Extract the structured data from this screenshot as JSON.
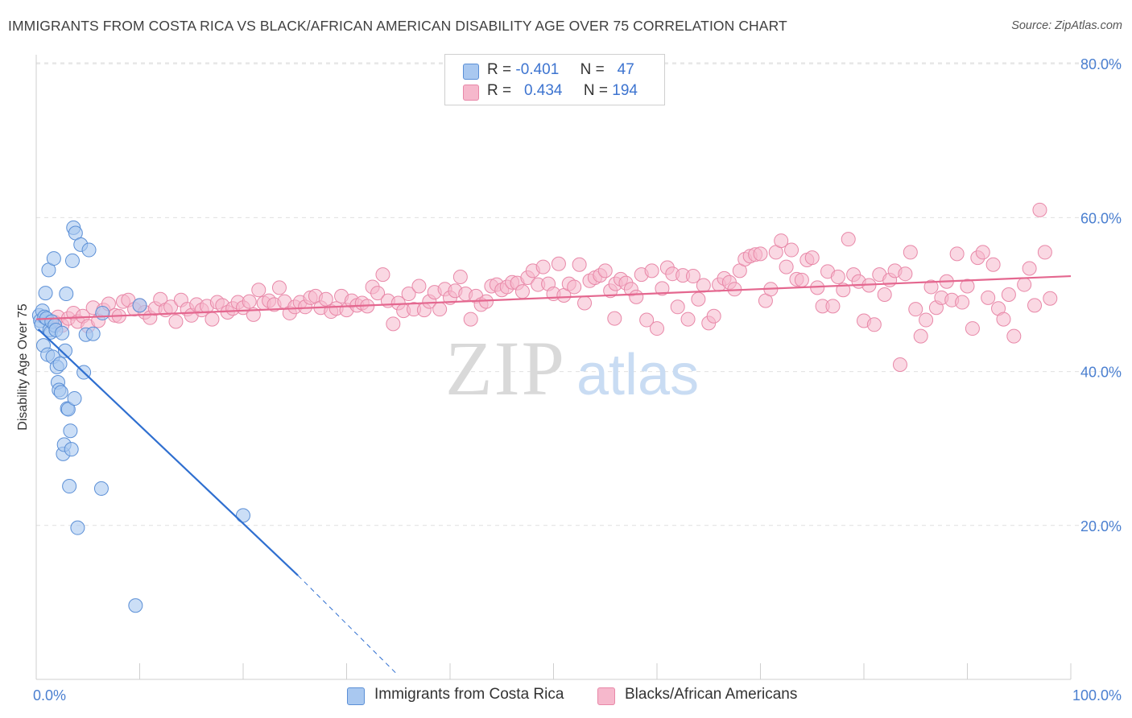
{
  "title": "IMMIGRANTS FROM COSTA RICA VS BLACK/AFRICAN AMERICAN DISABILITY AGE OVER 75 CORRELATION CHART",
  "source": "Source: ZipAtlas.com",
  "watermark": {
    "zip": "ZIP",
    "atlas": "atlas"
  },
  "colors": {
    "blue_fill": "#a9c8f0",
    "blue_stroke": "#5b8fd6",
    "blue_line": "#2f6fd0",
    "pink_fill": "#f6b8cc",
    "pink_stroke": "#e888a8",
    "pink_line": "#e4678f",
    "grid": "#e0e0e0",
    "tick_text": "#4a7fd0"
  },
  "legend_top": {
    "rows": [
      {
        "r_label": "R =",
        "r_value": "-0.401",
        "n_label": "N =",
        "n_value": "47"
      },
      {
        "r_label": "R =",
        "r_value": "0.434",
        "n_label": "N =",
        "n_value": "194"
      }
    ]
  },
  "legend_bottom": [
    {
      "name": "Immigrants from Costa Rica"
    },
    {
      "name": "Blacks/African Americans"
    }
  ],
  "chart_data": {
    "type": "scatter",
    "title": "IMMIGRANTS FROM COSTA RICA VS BLACK/AFRICAN AMERICAN DISABILITY AGE OVER 75 CORRELATION CHART",
    "xlabel": "",
    "ylabel": "Disability Age Over 75",
    "xlim": [
      0,
      100
    ],
    "ylim": [
      0,
      85
    ],
    "x_ticks": [
      0,
      100
    ],
    "x_tick_labels": [
      "0.0%",
      "100.0%"
    ],
    "y_ticks": [
      20,
      40,
      60,
      80
    ],
    "y_tick_labels": [
      "20.0%",
      "40.0%",
      "60.0%",
      "80.0%"
    ],
    "grid": true,
    "legend_placement": "bottom",
    "series": [
      {
        "name": "Immigrants from Costa Rica",
        "color": "#a9c8f0",
        "r": -0.401,
        "n": 47,
        "trend": {
          "x": [
            0.2,
            25.3
          ],
          "y": [
            45.5,
            13.5
          ],
          "dashed_to": [
            35.0,
            0.5
          ]
        },
        "points": [
          [
            0.3,
            47.3
          ],
          [
            0.4,
            46.6
          ],
          [
            0.5,
            46.1
          ],
          [
            0.6,
            47.9
          ],
          [
            0.7,
            43.4
          ],
          [
            0.8,
            47.1
          ],
          [
            0.9,
            50.2
          ],
          [
            1.0,
            46.9
          ],
          [
            1.1,
            42.2
          ],
          [
            1.2,
            53.2
          ],
          [
            1.3,
            45.4
          ],
          [
            1.4,
            45.1
          ],
          [
            1.5,
            46.5
          ],
          [
            1.6,
            41.9
          ],
          [
            1.7,
            54.7
          ],
          [
            1.8,
            46.0
          ],
          [
            1.9,
            45.4
          ],
          [
            2.0,
            40.6
          ],
          [
            2.1,
            38.6
          ],
          [
            2.2,
            37.6
          ],
          [
            2.3,
            41.0
          ],
          [
            2.4,
            37.3
          ],
          [
            2.5,
            45.0
          ],
          [
            2.6,
            29.3
          ],
          [
            2.7,
            30.5
          ],
          [
            2.8,
            42.7
          ],
          [
            2.9,
            50.1
          ],
          [
            3.0,
            35.2
          ],
          [
            3.1,
            35.1
          ],
          [
            3.2,
            25.1
          ],
          [
            3.3,
            32.3
          ],
          [
            3.4,
            29.9
          ],
          [
            3.5,
            54.4
          ],
          [
            3.6,
            58.7
          ],
          [
            3.7,
            36.5
          ],
          [
            3.8,
            58.0
          ],
          [
            4.0,
            19.7
          ],
          [
            4.3,
            56.5
          ],
          [
            4.6,
            39.9
          ],
          [
            4.8,
            44.8
          ],
          [
            5.1,
            55.8
          ],
          [
            5.5,
            44.9
          ],
          [
            6.3,
            24.8
          ],
          [
            6.4,
            47.6
          ],
          [
            9.6,
            9.6
          ],
          [
            10.0,
            48.6
          ],
          [
            20.0,
            21.3
          ]
        ]
      },
      {
        "name": "Blacks/African Americans",
        "color": "#f6b8cc",
        "r": 0.434,
        "n": 194,
        "trend": {
          "x": [
            0.0,
            100.0
          ],
          "y": [
            46.8,
            52.4
          ]
        },
        "points": [
          [
            1.8,
            46.4
          ],
          [
            2.1,
            47.1
          ],
          [
            2.5,
            46.0
          ],
          [
            3.1,
            46.9
          ],
          [
            3.6,
            47.6
          ],
          [
            4.0,
            46.5
          ],
          [
            4.5,
            47.2
          ],
          [
            5.0,
            45.9
          ],
          [
            5.5,
            48.3
          ],
          [
            6.0,
            46.6
          ],
          [
            6.5,
            48.0
          ],
          [
            7.0,
            48.8
          ],
          [
            7.6,
            47.3
          ],
          [
            8.0,
            47.2
          ],
          [
            8.4,
            49.1
          ],
          [
            8.9,
            49.3
          ],
          [
            9.5,
            48.1
          ],
          [
            10.0,
            48.6
          ],
          [
            10.5,
            47.7
          ],
          [
            11.0,
            47.0
          ],
          [
            11.5,
            48.2
          ],
          [
            12.0,
            49.4
          ],
          [
            12.5,
            48.0
          ],
          [
            13.0,
            48.4
          ],
          [
            13.5,
            46.5
          ],
          [
            14.0,
            49.3
          ],
          [
            14.6,
            48.1
          ],
          [
            15.0,
            47.3
          ],
          [
            15.5,
            48.7
          ],
          [
            16.0,
            48.0
          ],
          [
            16.5,
            48.5
          ],
          [
            17.0,
            46.8
          ],
          [
            17.5,
            49.0
          ],
          [
            18.0,
            48.6
          ],
          [
            18.5,
            47.7
          ],
          [
            19.0,
            48.2
          ],
          [
            19.5,
            49.0
          ],
          [
            20.0,
            48.3
          ],
          [
            20.6,
            49.1
          ],
          [
            21.0,
            47.4
          ],
          [
            21.5,
            50.6
          ],
          [
            22.0,
            48.9
          ],
          [
            22.5,
            49.2
          ],
          [
            23.0,
            48.7
          ],
          [
            23.5,
            50.9
          ],
          [
            24.0,
            49.1
          ],
          [
            24.5,
            47.6
          ],
          [
            25.0,
            48.4
          ],
          [
            25.5,
            49.0
          ],
          [
            26.0,
            48.4
          ],
          [
            26.5,
            49.6
          ],
          [
            27.0,
            49.8
          ],
          [
            27.5,
            48.3
          ],
          [
            28.0,
            49.4
          ],
          [
            28.5,
            47.8
          ],
          [
            29.0,
            48.2
          ],
          [
            29.5,
            49.8
          ],
          [
            30.0,
            48.0
          ],
          [
            30.5,
            49.2
          ],
          [
            31.0,
            48.6
          ],
          [
            31.5,
            48.9
          ],
          [
            32.0,
            48.5
          ],
          [
            32.5,
            51.0
          ],
          [
            33.0,
            50.2
          ],
          [
            33.5,
            52.6
          ],
          [
            34.0,
            49.2
          ],
          [
            34.5,
            46.2
          ],
          [
            35.0,
            48.9
          ],
          [
            35.5,
            47.9
          ],
          [
            36.0,
            50.1
          ],
          [
            36.5,
            48.1
          ],
          [
            37.0,
            51.1
          ],
          [
            37.5,
            48.0
          ],
          [
            38.0,
            49.1
          ],
          [
            38.5,
            50.3
          ],
          [
            39.0,
            48.1
          ],
          [
            39.5,
            50.7
          ],
          [
            40.0,
            49.6
          ],
          [
            40.5,
            50.5
          ],
          [
            41.0,
            52.3
          ],
          [
            41.5,
            50.1
          ],
          [
            42.0,
            46.8
          ],
          [
            42.5,
            49.8
          ],
          [
            43.0,
            48.7
          ],
          [
            43.5,
            49.1
          ],
          [
            44.0,
            51.1
          ],
          [
            44.5,
            51.3
          ],
          [
            45.0,
            50.6
          ],
          [
            45.5,
            51.0
          ],
          [
            46.0,
            51.6
          ],
          [
            46.5,
            51.5
          ],
          [
            47.0,
            50.4
          ],
          [
            47.5,
            52.2
          ],
          [
            48.0,
            53.1
          ],
          [
            48.5,
            51.3
          ],
          [
            49.0,
            53.6
          ],
          [
            49.5,
            51.4
          ],
          [
            50.0,
            50.1
          ],
          [
            50.5,
            54.0
          ],
          [
            51.0,
            49.9
          ],
          [
            51.5,
            51.4
          ],
          [
            52.0,
            51.0
          ],
          [
            52.5,
            53.9
          ],
          [
            53.0,
            48.9
          ],
          [
            53.5,
            51.8
          ],
          [
            54.0,
            52.2
          ],
          [
            54.5,
            52.5
          ],
          [
            55.0,
            53.1
          ],
          [
            55.5,
            50.5
          ],
          [
            56.0,
            51.4
          ],
          [
            56.5,
            52.0
          ],
          [
            57.0,
            51.5
          ],
          [
            57.5,
            50.7
          ],
          [
            58.0,
            49.7
          ],
          [
            58.5,
            52.6
          ],
          [
            59.0,
            46.7
          ],
          [
            59.5,
            53.1
          ],
          [
            60.0,
            45.6
          ],
          [
            60.5,
            50.8
          ],
          [
            61.0,
            53.5
          ],
          [
            61.5,
            52.7
          ],
          [
            62.0,
            48.4
          ],
          [
            62.5,
            52.5
          ],
          [
            63.0,
            46.8
          ],
          [
            63.5,
            52.4
          ],
          [
            64.0,
            49.4
          ],
          [
            64.5,
            51.2
          ],
          [
            65.0,
            46.3
          ],
          [
            65.5,
            47.2
          ],
          [
            66.0,
            51.3
          ],
          [
            66.5,
            52.1
          ],
          [
            67.0,
            51.6
          ],
          [
            67.5,
            50.7
          ],
          [
            68.0,
            53.1
          ],
          [
            68.5,
            54.6
          ],
          [
            69.0,
            55.0
          ],
          [
            69.5,
            55.2
          ],
          [
            70.0,
            55.3
          ],
          [
            70.5,
            49.2
          ],
          [
            71.0,
            50.7
          ],
          [
            71.5,
            55.5
          ],
          [
            72.0,
            57.0
          ],
          [
            72.5,
            53.6
          ],
          [
            73.0,
            55.8
          ],
          [
            73.5,
            52.0
          ],
          [
            74.0,
            51.9
          ],
          [
            74.5,
            54.5
          ],
          [
            75.0,
            54.8
          ],
          [
            75.5,
            50.9
          ],
          [
            76.0,
            48.5
          ],
          [
            76.5,
            53.0
          ],
          [
            77.0,
            48.5
          ],
          [
            77.5,
            52.3
          ],
          [
            78.0,
            50.6
          ],
          [
            78.5,
            57.2
          ],
          [
            79.0,
            52.6
          ],
          [
            79.5,
            51.7
          ],
          [
            80.0,
            46.6
          ],
          [
            80.5,
            51.2
          ],
          [
            81.0,
            46.1
          ],
          [
            81.5,
            52.6
          ],
          [
            82.0,
            50.0
          ],
          [
            82.5,
            51.9
          ],
          [
            83.0,
            53.1
          ],
          [
            83.5,
            40.9
          ],
          [
            84.0,
            52.7
          ],
          [
            84.5,
            55.5
          ],
          [
            85.0,
            48.1
          ],
          [
            85.5,
            44.6
          ],
          [
            86.0,
            46.7
          ],
          [
            86.5,
            51.0
          ],
          [
            87.0,
            48.3
          ],
          [
            87.5,
            49.6
          ],
          [
            88.0,
            51.7
          ],
          [
            88.5,
            49.3
          ],
          [
            89.0,
            55.3
          ],
          [
            89.5,
            49.0
          ],
          [
            90.0,
            51.1
          ],
          [
            90.5,
            45.6
          ],
          [
            91.0,
            54.8
          ],
          [
            91.5,
            55.5
          ],
          [
            92.0,
            49.6
          ],
          [
            92.5,
            53.9
          ],
          [
            93.0,
            48.2
          ],
          [
            93.5,
            46.8
          ],
          [
            94.0,
            50.0
          ],
          [
            94.5,
            44.6
          ],
          [
            95.5,
            51.3
          ],
          [
            96.0,
            53.4
          ],
          [
            96.5,
            48.6
          ],
          [
            97.0,
            61.0
          ],
          [
            97.5,
            55.5
          ],
          [
            98.0,
            49.5
          ],
          [
            55.9,
            46.9
          ]
        ]
      }
    ]
  }
}
